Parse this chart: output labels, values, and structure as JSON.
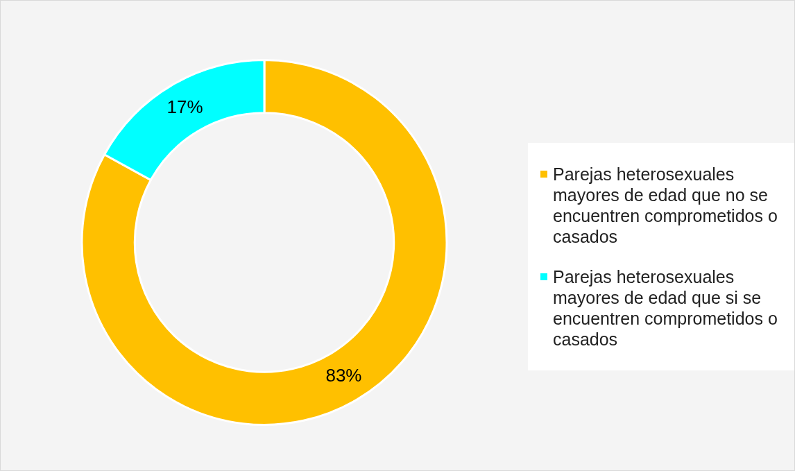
{
  "chart_data": {
    "type": "donut",
    "categories": [
      "Parejas heterosexuales mayores de edad que no se encuentren comprometidos o casados",
      "Parejas heterosexuales mayores de edad que si se encuentren comprometidos o casados"
    ],
    "values": [
      83,
      17
    ],
    "colors": [
      "#ffc000",
      "#00ffff"
    ],
    "value_labels": [
      "83%",
      "17%"
    ],
    "legend": "right"
  }
}
